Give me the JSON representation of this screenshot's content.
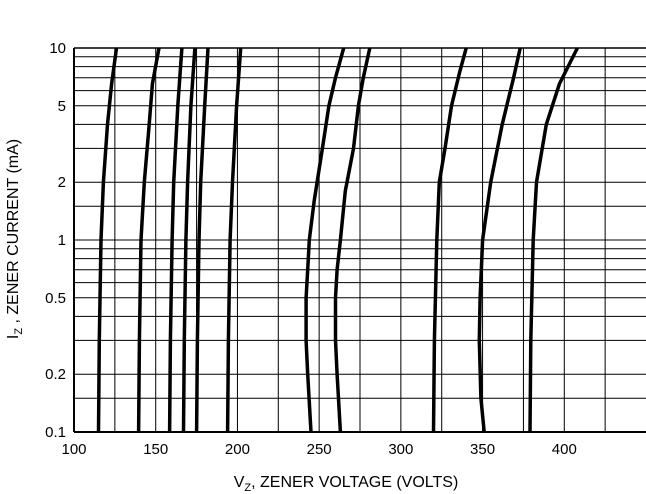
{
  "chart_data": {
    "type": "line",
    "title": "",
    "x_scale": "linear",
    "y_scale": "log",
    "xlim": [
      100,
      450
    ],
    "ylim": [
      0.1,
      10
    ],
    "grid": true,
    "x_ticks": [
      100,
      150,
      200,
      250,
      300,
      350,
      400
    ],
    "x_tick_labels": [
      "100",
      "150",
      "200",
      "250",
      "300",
      "350",
      "400"
    ],
    "x_minor_grid": [
      100,
      125,
      150,
      175,
      200,
      225,
      250,
      275,
      300,
      325,
      350,
      375,
      400,
      425
    ],
    "y_ticks": [
      0.1,
      0.2,
      0.5,
      1,
      2,
      5,
      10
    ],
    "y_tick_labels": [
      "0.1",
      "0.2",
      "0.5",
      "1",
      "2",
      "5",
      "10"
    ],
    "y_minor_grid": [
      0.1,
      0.15,
      0.2,
      0.3,
      0.4,
      0.5,
      0.6,
      0.7,
      0.8,
      0.9,
      1,
      1.5,
      2,
      3,
      4,
      5,
      6,
      7,
      8,
      9,
      10
    ],
    "xlabel": {
      "main": "V",
      "sub": "Z",
      "rest": ", ZENER VOLTAGE (VOLTS)"
    },
    "ylabel": {
      "main": "I",
      "sub": "Z",
      "rest": " , ZENER CURRENT (mA)"
    },
    "series": [
      {
        "points": [
          [
            115,
            0.1
          ],
          [
            115.5,
            0.3
          ],
          [
            116.5,
            1
          ],
          [
            118,
            2
          ],
          [
            120.5,
            4
          ],
          [
            123,
            6.5
          ],
          [
            126,
            10
          ]
        ]
      },
      {
        "points": [
          [
            139.5,
            0.1
          ],
          [
            140,
            0.3
          ],
          [
            141,
            1
          ],
          [
            143,
            2
          ],
          [
            146,
            4
          ],
          [
            148,
            6.5
          ],
          [
            152,
            10
          ]
        ]
      },
      {
        "points": [
          [
            158.5,
            0.1
          ],
          [
            159,
            0.3
          ],
          [
            160,
            1
          ],
          [
            161,
            2
          ],
          [
            163.5,
            5
          ],
          [
            166,
            10
          ]
        ]
      },
      {
        "points": [
          [
            167,
            0.1
          ],
          [
            167.5,
            0.3
          ],
          [
            168.5,
            1
          ],
          [
            169.5,
            2
          ],
          [
            171.5,
            5
          ],
          [
            174,
            10
          ]
        ]
      },
      {
        "points": [
          [
            175,
            0.1
          ],
          [
            175.5,
            0.3
          ],
          [
            176.5,
            1
          ],
          [
            177.5,
            2
          ],
          [
            180,
            5
          ],
          [
            182,
            10
          ]
        ]
      },
      {
        "points": [
          [
            194,
            0.1
          ],
          [
            194.5,
            0.3
          ],
          [
            195.5,
            1
          ],
          [
            197,
            2
          ],
          [
            199.5,
            5
          ],
          [
            202,
            10
          ]
        ]
      },
      {
        "points": [
          [
            245,
            0.1
          ],
          [
            243,
            0.2
          ],
          [
            242,
            0.3
          ],
          [
            242,
            0.5
          ],
          [
            243,
            0.7
          ],
          [
            244,
            1
          ],
          [
            247,
            1.6
          ],
          [
            252,
            3
          ],
          [
            256,
            5
          ],
          [
            260,
            7
          ],
          [
            265,
            10
          ]
        ]
      },
      {
        "points": [
          [
            263,
            0.1
          ],
          [
            261,
            0.2
          ],
          [
            260,
            0.3
          ],
          [
            260,
            0.5
          ],
          [
            261,
            0.7
          ],
          [
            263,
            1
          ],
          [
            266,
            1.8
          ],
          [
            271,
            3
          ],
          [
            274,
            5
          ],
          [
            277,
            7
          ],
          [
            281,
            10
          ]
        ]
      },
      {
        "points": [
          [
            320,
            0.1
          ],
          [
            320.5,
            0.3
          ],
          [
            322,
            1
          ],
          [
            323.5,
            2
          ],
          [
            327,
            3
          ],
          [
            331,
            5
          ],
          [
            336,
            7.5
          ],
          [
            340,
            10
          ]
        ]
      },
      {
        "points": [
          [
            351,
            0.1
          ],
          [
            349,
            0.15
          ],
          [
            348,
            0.3
          ],
          [
            348.5,
            0.5
          ],
          [
            350,
            1
          ],
          [
            355,
            2
          ],
          [
            362,
            4
          ],
          [
            369,
            7
          ],
          [
            373,
            10
          ]
        ]
      },
      {
        "points": [
          [
            379,
            0.1
          ],
          [
            379.5,
            0.3
          ],
          [
            381,
            1
          ],
          [
            383,
            2
          ],
          [
            389,
            4
          ],
          [
            397,
            6.5
          ],
          [
            408,
            10
          ]
        ]
      }
    ]
  }
}
